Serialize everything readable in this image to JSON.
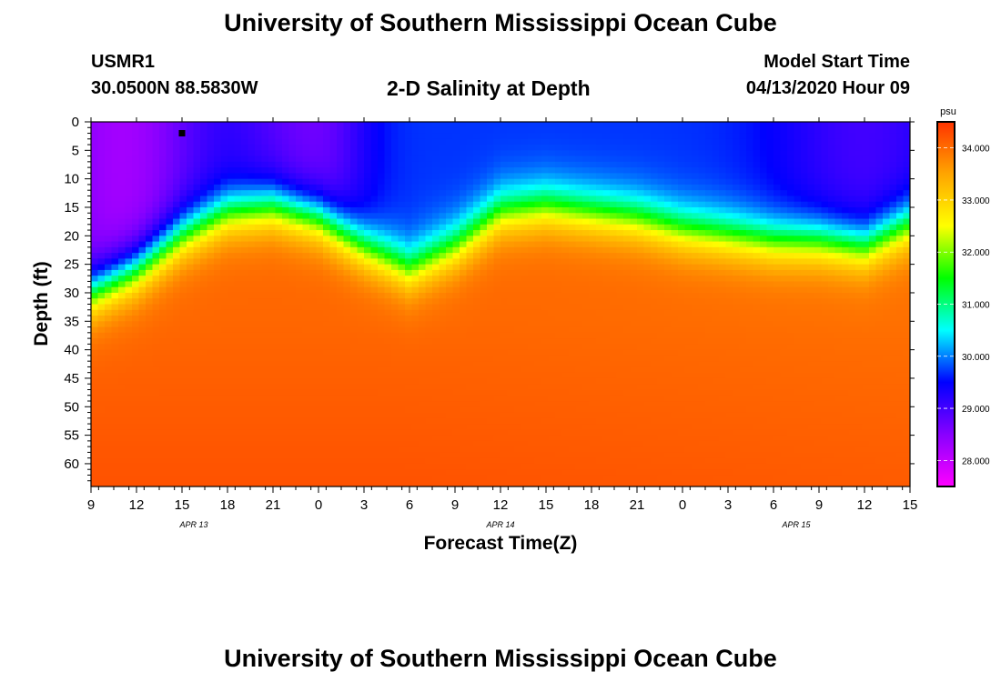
{
  "header": {
    "title": "University of Southern Mississippi Ocean Cube",
    "station_id": "USMR1",
    "station_coords": "30.0500N 88.5830W",
    "plot_title": "2-D Salinity at Depth",
    "start_label": "Model Start Time",
    "start_value": "04/13/2020 Hour 09"
  },
  "footer": {
    "title": "University of Southern Mississippi Ocean Cube"
  },
  "chart_data": {
    "type": "heatmap",
    "title": "2-D Salinity at Depth",
    "xlabel": "Forecast Time(Z)",
    "ylabel": "Depth (ft)",
    "x_tick_labels": [
      "9",
      "12",
      "15",
      "18",
      "21",
      "0",
      "3",
      "6",
      "9",
      "12",
      "15",
      "18",
      "21",
      "0",
      "3",
      "6",
      "9",
      "12",
      "15"
    ],
    "x_date_labels": [
      "APR 13",
      "APR 14",
      "APR 15"
    ],
    "xlim_forecast_hours": [
      0,
      54
    ],
    "y_tick_labels": [
      "0",
      "5",
      "10",
      "15",
      "20",
      "25",
      "30",
      "35",
      "40",
      "45",
      "50",
      "55",
      "60"
    ],
    "ylim": [
      0,
      64
    ],
    "y_inverted": true,
    "colorbar": {
      "unit": "psu",
      "ticks": [
        "28.000",
        "29.000",
        "30.000",
        "31.000",
        "32.000",
        "33.000",
        "34.000"
      ],
      "range": [
        27.5,
        34.5
      ],
      "colors": [
        "#ff00ff",
        "#8800ff",
        "#0000ff",
        "#00ffff",
        "#00ff00",
        "#ffff00",
        "#ffa500",
        "#ff3300"
      ]
    },
    "pycnocline_depth_ft": {
      "forecast_hour": [
        0,
        3,
        6,
        9,
        12,
        15,
        18,
        21,
        24,
        27,
        30,
        33,
        36,
        39,
        42,
        45,
        48,
        51,
        54
      ],
      "depth": [
        30,
        26,
        20,
        16,
        15,
        17,
        22,
        26,
        22,
        16,
        15,
        16,
        17,
        19,
        20,
        21,
        21,
        22,
        18
      ]
    },
    "marker": {
      "forecast_hour": 6,
      "depth_ft": 2
    },
    "grid": false,
    "legend": "colorbar-right"
  }
}
